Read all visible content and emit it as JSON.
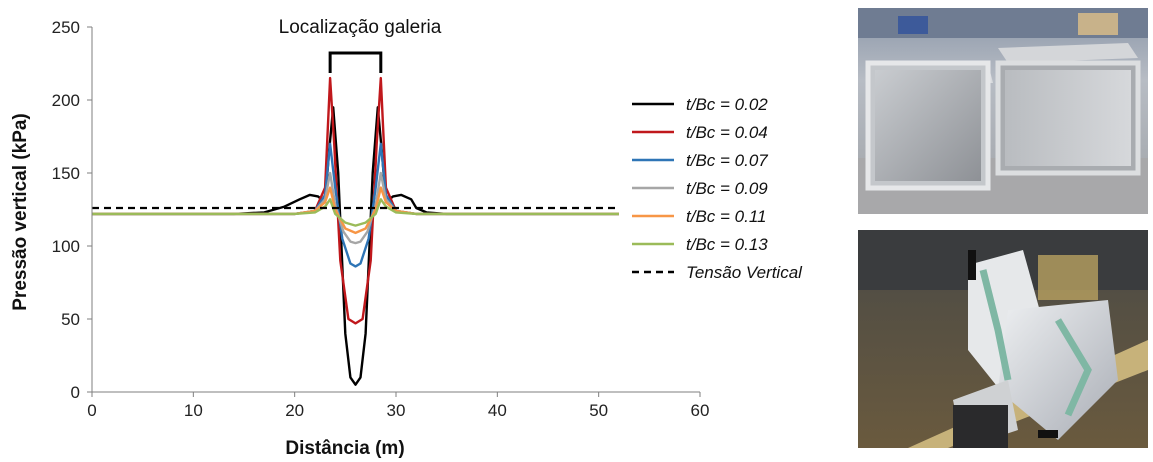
{
  "chart_data": {
    "type": "line",
    "xlabel": "Distância (m)",
    "ylabel": "Pressão vertical (kPa)",
    "xlim": [
      0,
      60
    ],
    "ylim": [
      0,
      250
    ],
    "x_ticks": [
      "0",
      "10",
      "20",
      "30",
      "40",
      "50",
      "60"
    ],
    "y_ticks": [
      "0",
      "50",
      "100",
      "150",
      "200",
      "250"
    ],
    "grid": false,
    "legend_position": "right",
    "annotation": "Localização galeria",
    "series": [
      {
        "name": "t/Bc = 0.02",
        "color": "#000000",
        "style": "solid",
        "x": [
          0,
          14,
          17,
          19,
          20.5,
          21.5,
          22.3,
          23,
          23.4,
          23.8,
          24.3,
          25,
          25.5,
          26,
          26.5,
          27,
          27.7,
          28.2,
          28.6,
          29,
          29.7,
          30.5,
          31.5,
          32,
          33,
          35,
          52
        ],
        "y": [
          122,
          122,
          123,
          127,
          132,
          135,
          134,
          130,
          165,
          195,
          150,
          40,
          10,
          5,
          10,
          40,
          150,
          195,
          165,
          130,
          134,
          135,
          132,
          126,
          123,
          122,
          122
        ]
      },
      {
        "name": "t/Bc = 0.04",
        "color": "#c0181c",
        "style": "solid",
        "x": [
          0,
          20,
          22,
          23,
          23.5,
          23.9,
          24.5,
          25.3,
          26,
          26.7,
          27.5,
          28.1,
          28.5,
          29,
          30,
          32,
          52
        ],
        "y": [
          122,
          122,
          124,
          140,
          215,
          170,
          90,
          50,
          47,
          50,
          90,
          170,
          215,
          140,
          124,
          122,
          122
        ]
      },
      {
        "name": "t/Bc = 0.07",
        "color": "#2e75b6",
        "style": "solid",
        "x": [
          0,
          20,
          22,
          23,
          23.5,
          24,
          24.7,
          25.5,
          26,
          26.5,
          27.3,
          28,
          28.5,
          29,
          30,
          32,
          52
        ],
        "y": [
          122,
          122,
          124,
          135,
          170,
          140,
          105,
          88,
          86,
          88,
          105,
          140,
          170,
          135,
          124,
          122,
          122
        ]
      },
      {
        "name": "t/Bc = 0.09",
        "color": "#a6a6a6",
        "style": "solid",
        "x": [
          0,
          20,
          22,
          23,
          23.5,
          24,
          24.8,
          25.5,
          26,
          26.5,
          27.2,
          28,
          28.5,
          29,
          30,
          32,
          52
        ],
        "y": [
          122,
          122,
          124,
          132,
          150,
          128,
          110,
          103,
          102,
          103,
          110,
          128,
          150,
          132,
          124,
          122,
          122
        ]
      },
      {
        "name": "t/Bc = 0.11",
        "color": "#f79646",
        "style": "solid",
        "x": [
          0,
          20,
          22,
          23,
          23.5,
          24,
          25,
          26,
          27,
          28,
          28.5,
          29,
          30,
          32,
          52
        ],
        "y": [
          122,
          122,
          124,
          130,
          140,
          125,
          112,
          109,
          112,
          125,
          140,
          130,
          124,
          122,
          122
        ]
      },
      {
        "name": "t/Bc = 0.13",
        "color": "#9bbb59",
        "style": "solid",
        "x": [
          0,
          20,
          22,
          23,
          23.5,
          24,
          25,
          26,
          27,
          28,
          28.5,
          29,
          30,
          32,
          52
        ],
        "y": [
          122,
          122,
          123,
          127,
          132,
          122,
          116,
          114,
          116,
          122,
          132,
          127,
          123,
          122,
          122
        ]
      },
      {
        "name": "Tensão Vertical",
        "color": "#000000",
        "style": "dashed",
        "x": [
          0,
          52
        ],
        "y": [
          126,
          126
        ]
      }
    ]
  },
  "bracket": {
    "x_start": 23.5,
    "x_end": 28.5
  },
  "photos": [
    {
      "name": "photo-top",
      "caption": ""
    },
    {
      "name": "photo-bottom",
      "caption": ""
    }
  ]
}
